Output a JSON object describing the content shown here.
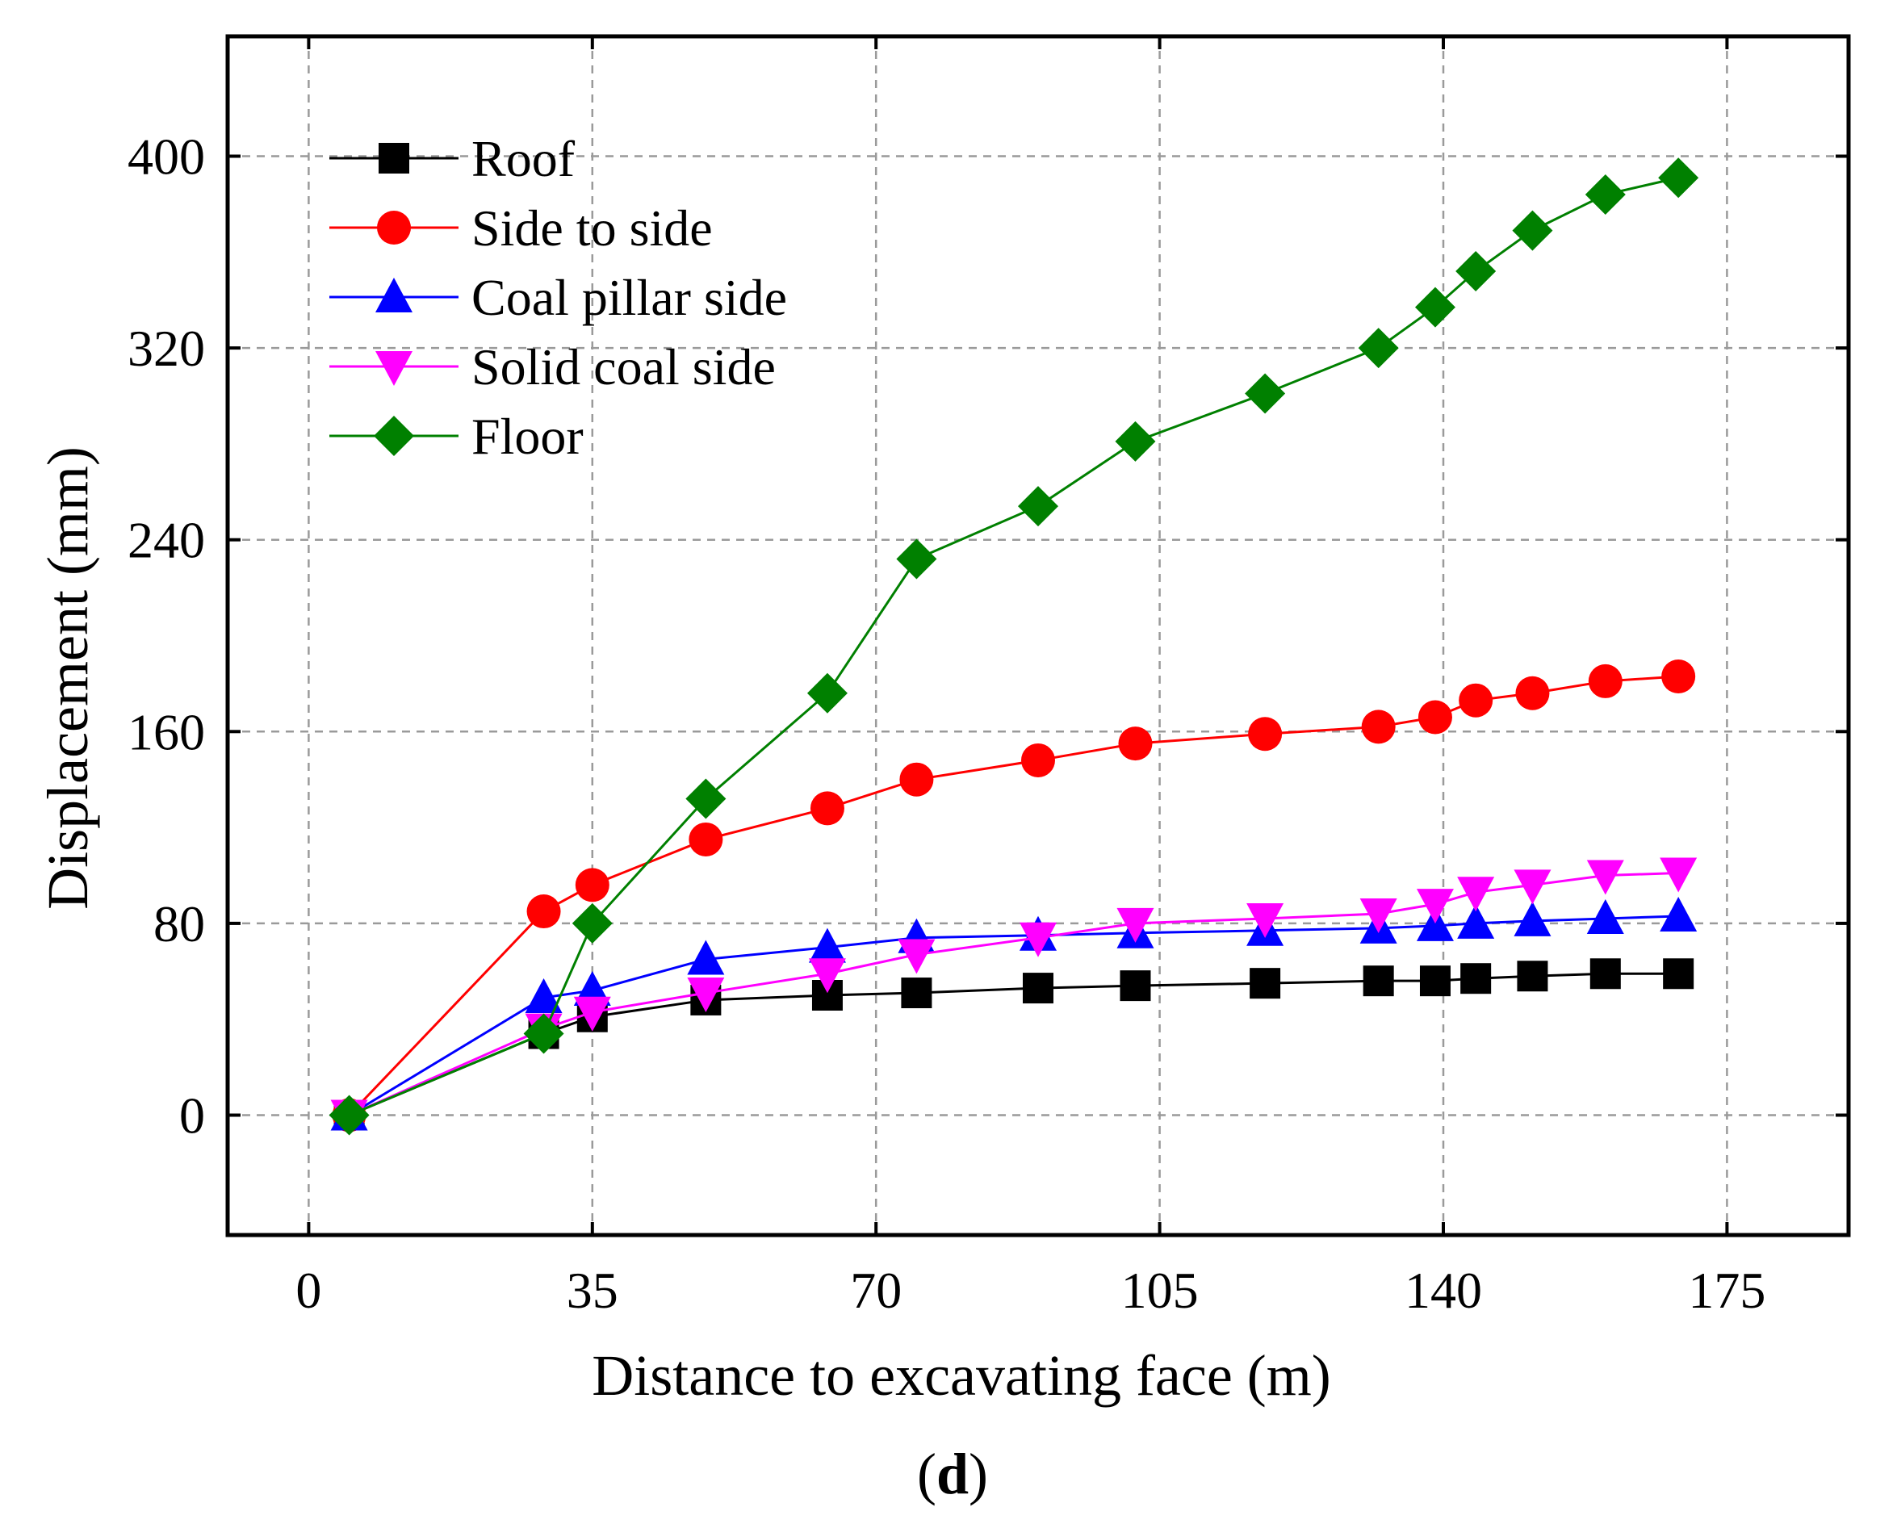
{
  "caption": {
    "open": "(",
    "letter": "d",
    "close": ")"
  },
  "chart_data": {
    "type": "line",
    "xlabel": "Distance to excavating face (m)",
    "ylabel": "Displacement (mm)",
    "xlim": [
      -10,
      190
    ],
    "ylim": [
      -50,
      450
    ],
    "xticks": [
      0,
      35,
      70,
      105,
      140,
      175
    ],
    "yticks": [
      0,
      80,
      160,
      240,
      320,
      400
    ],
    "grid": true,
    "legend_position": "top-left",
    "x": [
      5,
      29,
      35,
      49,
      64,
      75,
      90,
      102,
      118,
      132,
      139,
      144,
      151,
      160,
      169
    ],
    "series": [
      {
        "name": "Roof",
        "color": "#000000",
        "marker": "square",
        "values": [
          0,
          34,
          41,
          48,
          50,
          51,
          53,
          54,
          55,
          56,
          56,
          57,
          58,
          59,
          59
        ]
      },
      {
        "name": "Side to side",
        "color": "#ff0000",
        "marker": "circle",
        "values": [
          0,
          85,
          96,
          115,
          128,
          140,
          148,
          155,
          159,
          162,
          166,
          173,
          176,
          181,
          183
        ]
      },
      {
        "name": "Coal pillar side",
        "color": "#0000ff",
        "marker": "triangle-up",
        "values": [
          0,
          49,
          52,
          65,
          70,
          74,
          75,
          76,
          77,
          78,
          79,
          80,
          81,
          82,
          83
        ]
      },
      {
        "name": "Solid coal side",
        "color": "#ff00ff",
        "marker": "triangle-down",
        "values": [
          0,
          36,
          43,
          51,
          59,
          67,
          74,
          80,
          82,
          84,
          88,
          93,
          96,
          100,
          101
        ]
      },
      {
        "name": "Floor",
        "color": "#008000",
        "marker": "diamond",
        "values": [
          0,
          34,
          80,
          132,
          176,
          232,
          254,
          281,
          301,
          320,
          337,
          352,
          369,
          384,
          391
        ]
      }
    ]
  }
}
